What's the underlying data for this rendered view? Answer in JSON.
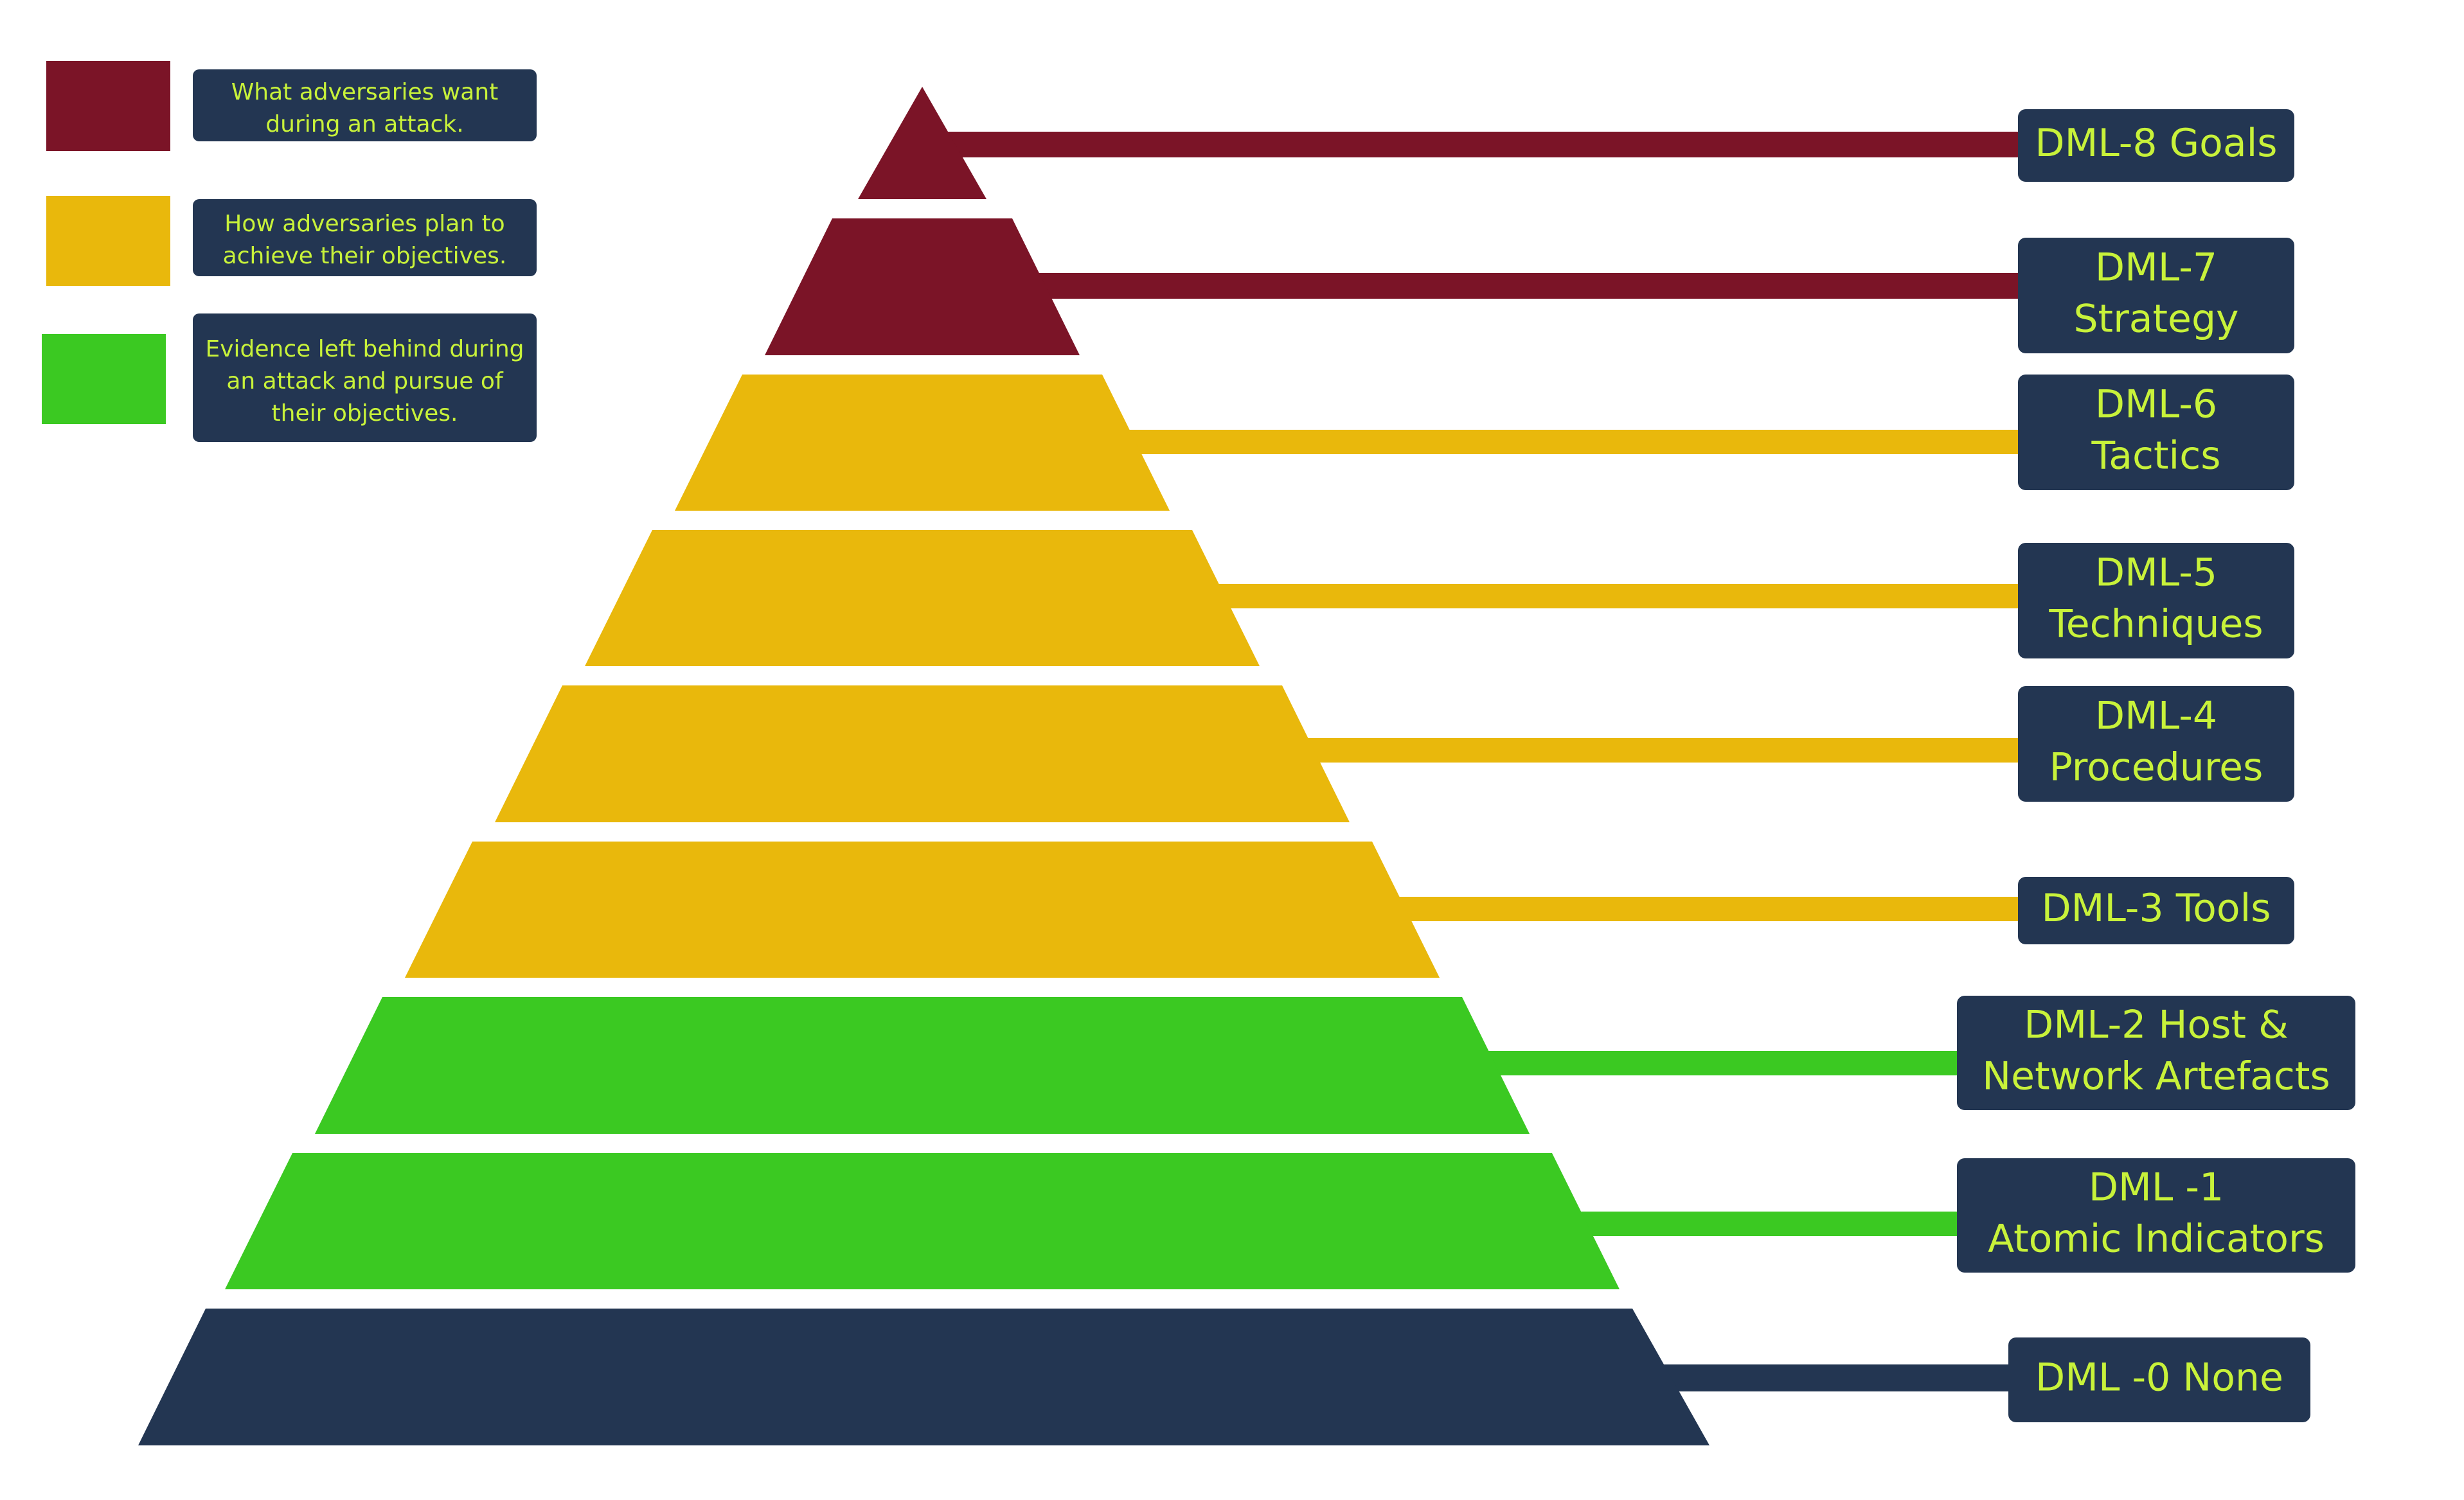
{
  "colors": {
    "goal": "#7B1427",
    "yellow": "#E9B80C",
    "green": "#3BC922",
    "navy": "#233652",
    "label_text": "#C8F23A"
  },
  "legend": [
    {
      "color_key": "goal",
      "text_lines": [
        "What adversaries want",
        "during an attack."
      ]
    },
    {
      "color_key": "yellow",
      "text_lines": [
        "How adversaries plan to",
        "achieve their objectives."
      ]
    },
    {
      "color_key": "green",
      "text_lines": [
        "Evidence left behind during",
        "an attack and pursue of",
        "their objectives."
      ]
    }
  ],
  "levels": [
    {
      "id": "dml-8",
      "color_key": "goal",
      "label_lines": [
        "DML-8 Goals"
      ]
    },
    {
      "id": "dml-7",
      "color_key": "goal",
      "label_lines": [
        "DML-7",
        "Strategy"
      ]
    },
    {
      "id": "dml-6",
      "color_key": "yellow",
      "label_lines": [
        "DML-6",
        "Tactics"
      ]
    },
    {
      "id": "dml-5",
      "color_key": "yellow",
      "label_lines": [
        "DML-5",
        "Techniques"
      ]
    },
    {
      "id": "dml-4",
      "color_key": "yellow",
      "label_lines": [
        "DML-4",
        "Procedures"
      ]
    },
    {
      "id": "dml-3",
      "color_key": "yellow",
      "label_lines": [
        "DML-3 Tools"
      ]
    },
    {
      "id": "dml-2",
      "color_key": "green",
      "label_lines": [
        "DML-2 Host &",
        "Network Artefacts"
      ]
    },
    {
      "id": "dml-1",
      "color_key": "green",
      "label_lines": [
        "DML -1",
        "Atomic Indicators"
      ]
    },
    {
      "id": "dml-0",
      "color_key": "navy",
      "label_lines": [
        "DML -0 None"
      ]
    }
  ]
}
